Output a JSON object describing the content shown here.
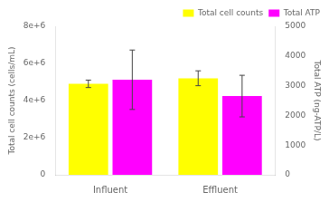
{
  "chart_data": {
    "type": "bar",
    "categories": [
      "Influent",
      "Effluent"
    ],
    "series": [
      {
        "name": "Total cell counts",
        "color": "#ffff00",
        "values": [
          4900000,
          5200000
        ],
        "errors": [
          200000,
          400000
        ]
      },
      {
        "name": "Total ATP",
        "color": "#ff00ff",
        "values": [
          3200,
          2650
        ],
        "errors": [
          1000,
          700
        ],
        "axis": "y2"
      }
    ],
    "ylabel": "Total cell counts (cells/mL)",
    "y2label": "Total ATP (ng-ATP/L)",
    "ylim": [
      0,
      8000000
    ],
    "yticks": [
      0,
      {
        "value": 2000000,
        "label": "2e+6"
      },
      {
        "value": 4000000,
        "label": "4e+6"
      },
      {
        "value": 6000000,
        "label": "6e+6"
      },
      {
        "value": 8000000,
        "label": "8e+6"
      }
    ],
    "y2lim": [
      0,
      5000
    ],
    "y2ticks": [
      0,
      1000,
      2000,
      3000,
      4000,
      5000
    ],
    "grid": false,
    "legend": "upper right"
  }
}
